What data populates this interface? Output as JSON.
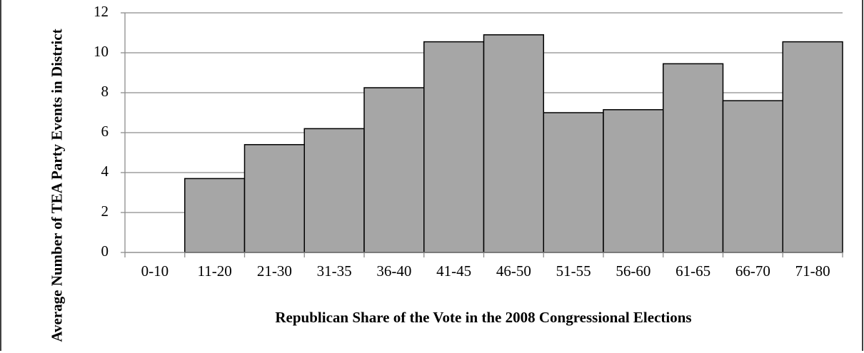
{
  "chart_data": {
    "type": "bar",
    "x_label": "Republican Share of the Vote in the 2008 Congressional Elections",
    "y_label": "Average Number of TEA Party Events in District",
    "categories": [
      "0-10",
      "11-20",
      "21-30",
      "31-35",
      "36-40",
      "41-45",
      "46-50",
      "51-55",
      "56-60",
      "61-65",
      "66-70",
      "71-80"
    ],
    "values": [
      0,
      3.7,
      5.4,
      6.2,
      8.25,
      10.55,
      10.9,
      7.0,
      7.15,
      9.45,
      7.6,
      10.55
    ],
    "color": "#a6a6a6",
    "ylim": [
      0,
      12
    ],
    "yticks": [
      0,
      2,
      4,
      6,
      8,
      10,
      12
    ],
    "grid": true
  }
}
